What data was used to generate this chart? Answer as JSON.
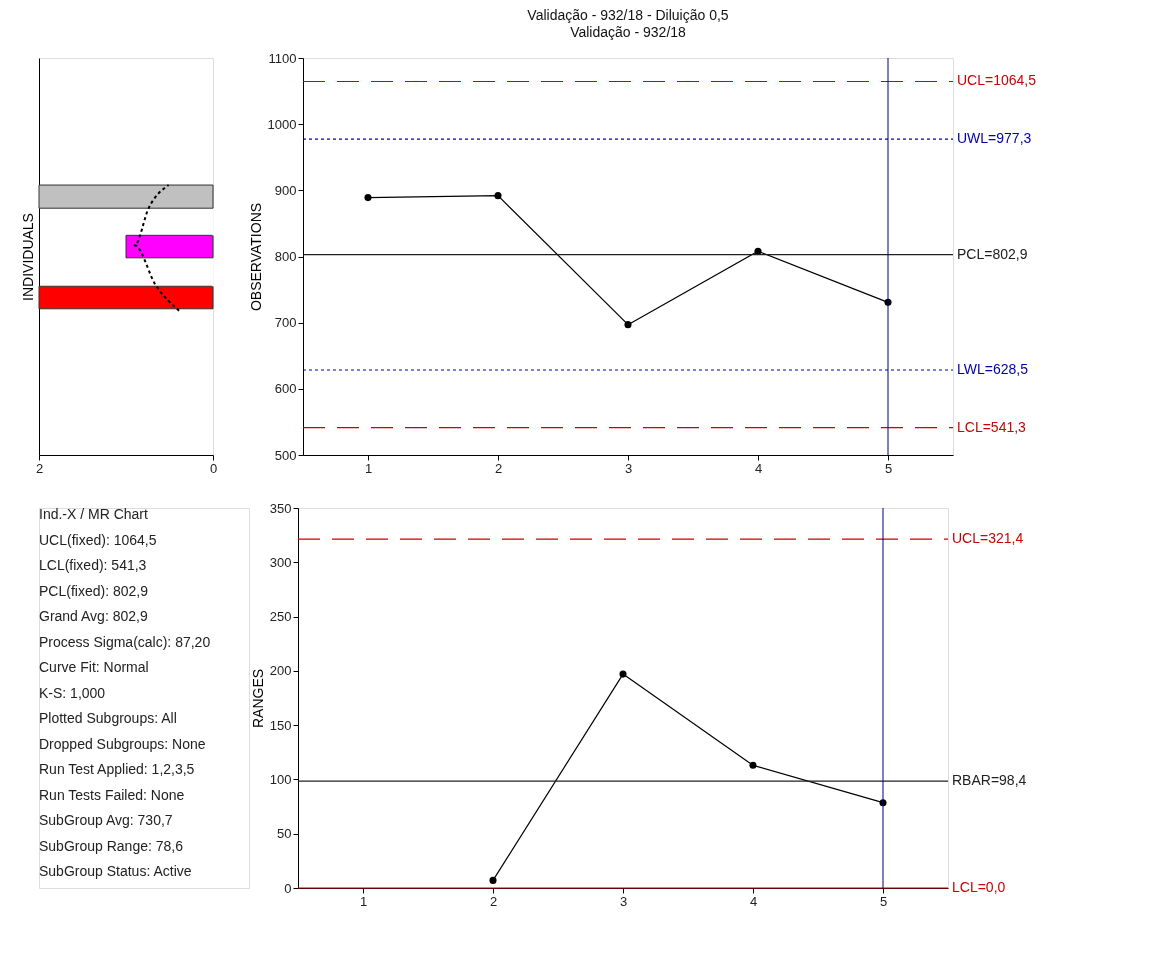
{
  "chart_data": [
    {
      "type": "histogram",
      "ylabel": "INDIVIDUALS",
      "orientation": "horizontal",
      "bins": [
        721,
        755,
        798,
        832,
        873,
        908
      ],
      "values": [
        2,
        0,
        1,
        0,
        2
      ],
      "colors": [
        "#ff0000",
        "#ffffff",
        "#ff00ff",
        "#ffffff",
        "#c0c0c0"
      ],
      "xlim": [
        2,
        0
      ],
      "xticks": [
        2,
        0
      ],
      "ylim": [
        500,
        1100
      ],
      "tick_labels": "x",
      "grid": false,
      "series": [
        {
          "type": "line",
          "color": "#000000",
          "line_style": "dotted",
          "x": [
            718,
            757,
            817,
            873,
            908
          ],
          "values": [
            0.39,
            0.66,
            0.9,
            0.74,
            0.51
          ]
        }
      ]
    },
    {
      "type": "line",
      "title": "Validação - 932/18 - Diluição 0,5",
      "subtitle": "Validação - 932/18",
      "ylabel": "OBSERVATIONS",
      "x": [
        1,
        2,
        3,
        4,
        5
      ],
      "values": [
        889,
        892,
        697,
        808,
        730.7
      ],
      "xlim": [
        0.5,
        5.5
      ],
      "xticks": [
        1,
        2,
        3,
        4,
        5
      ],
      "ylim": [
        500,
        1100
      ],
      "yticks": [
        500,
        600,
        700,
        800,
        900,
        1000,
        1100
      ],
      "marker": "circle",
      "grid": false,
      "color": "#000000",
      "ref_lines": [
        {
          "axis": "y",
          "value": 1064.5,
          "label": "UCL=1064,5",
          "color": "#cc0000",
          "line_style": "dashed"
        },
        {
          "axis": "y",
          "value": 977.3,
          "label": "UWL=977,3",
          "color": "#0000aa",
          "line_style": "dotted"
        },
        {
          "axis": "y",
          "value": 802.9,
          "label": "PCL=802,9",
          "color": "#202020",
          "line_style": "solid"
        },
        {
          "axis": "y",
          "value": 628.5,
          "label": "LWL=628,5",
          "color": "#0000aa",
          "line_style": "dotted"
        },
        {
          "axis": "y",
          "value": 541.3,
          "label": "LCL=541,3",
          "color": "#cc0000",
          "line_style": "dashed"
        },
        {
          "axis": "x",
          "value": 5,
          "color": "#000080",
          "line_style": "solid"
        }
      ]
    },
    {
      "type": "other",
      "annotations": [
        "Ind.-X / MR Chart",
        "UCL(fixed): 1064,5",
        "LCL(fixed): 541,3",
        "PCL(fixed): 802,9",
        "Grand Avg: 802,9",
        "Process Sigma(calc): 87,20",
        "Curve Fit: Normal",
        "K-S: 1,000",
        "Plotted Subgroups: All",
        "Dropped Subgroups: None",
        "Run Test Applied: 1,2,3,5",
        "Run Tests Failed: None",
        "SubGroup Avg: 730,7",
        "SubGroup Range: 78,6",
        "SubGroup Status: Active"
      ]
    },
    {
      "type": "line",
      "ylabel": "RANGES",
      "x": [
        2,
        3,
        4,
        5
      ],
      "values": [
        7,
        197,
        113,
        78.6
      ],
      "xlim": [
        0.5,
        5.5
      ],
      "xticks": [
        1,
        2,
        3,
        4,
        5
      ],
      "ylim": [
        0,
        350
      ],
      "yticks": [
        0,
        50,
        100,
        150,
        200,
        250,
        300,
        350
      ],
      "marker": "circle",
      "grid": false,
      "color": "#000000",
      "ref_lines": [
        {
          "axis": "y",
          "value": 321.4,
          "label": "UCL=321,4",
          "color": "#cc0000",
          "line_style": "dashed"
        },
        {
          "axis": "y",
          "value": 98.4,
          "label": "RBAR=98,4",
          "color": "#202020",
          "line_style": "solid"
        },
        {
          "axis": "y",
          "value": 0.0,
          "label": "LCL=0,0",
          "color": "#cc0000",
          "line_style": "solid"
        },
        {
          "axis": "x",
          "value": 5,
          "color": "#000080",
          "line_style": "solid"
        }
      ]
    }
  ]
}
